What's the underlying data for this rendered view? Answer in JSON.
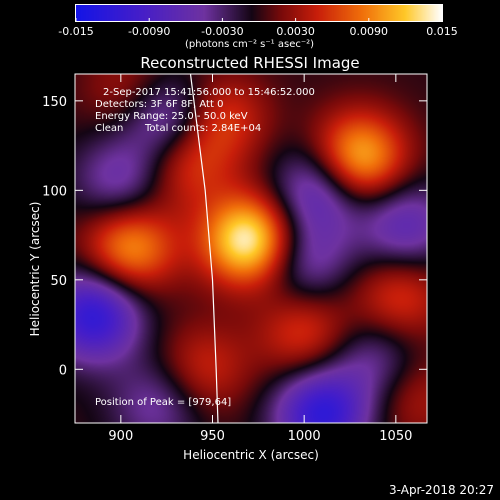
{
  "chart_data": {
    "type": "heatmap",
    "title": "Reconstructed RHESSI Image",
    "xlabel": "Heliocentric X (arcsec)",
    "ylabel": "Heliocentric Y (arcsec)",
    "xlim": [
      875,
      1067
    ],
    "ylim": [
      -30,
      165
    ],
    "xticks": [
      900,
      950,
      1000,
      1050
    ],
    "yticks": [
      0,
      50,
      100,
      150
    ],
    "colorbar": {
      "range": [
        -0.015,
        0.015
      ],
      "ticks": [
        "-0.015",
        "-0.0090",
        "-0.0030",
        "0.0030",
        "0.0090",
        "0.015"
      ],
      "unit_label": "(photons cm⁻² s⁻¹ asec⁻²)"
    },
    "annotations": [
      "2-Sep-2017 15:41:56.000 to 15:46:52.000",
      "Detectors: 3F 6F 8F, Att 0",
      "Energy Range: 25.0 - 50.0 keV",
      "Clean",
      "Total counts: 2.84E+04"
    ],
    "peak_label": "Position of Peak = [979,64]",
    "peak": [
      979,
      64
    ],
    "sources": [
      {
        "x": 970,
        "y": 72,
        "value": 0.015
      },
      {
        "x": 1030,
        "y": 118,
        "value": 0.012
      },
      {
        "x": 905,
        "y": 68,
        "value": 0.01
      },
      {
        "x": 1052,
        "y": 40,
        "value": 0.006
      },
      {
        "x": 955,
        "y": 140,
        "value": 0.006
      },
      {
        "x": 935,
        "y": 115,
        "value": 0.006
      },
      {
        "x": 1000,
        "y": 20,
        "value": 0.006
      },
      {
        "x": 945,
        "y": 0,
        "value": 0.005
      },
      {
        "x": 905,
        "y": 155,
        "value": 0.004
      },
      {
        "x": 1060,
        "y": -15,
        "value": 0.004
      },
      {
        "x": 925,
        "y": 140,
        "value": -0.008
      },
      {
        "x": 885,
        "y": 30,
        "value": -0.012
      },
      {
        "x": 1008,
        "y": 100,
        "value": -0.008
      },
      {
        "x": 1000,
        "y": 60,
        "value": -0.006
      },
      {
        "x": 900,
        "y": 105,
        "value": -0.006
      },
      {
        "x": 1055,
        "y": 80,
        "value": -0.007
      },
      {
        "x": 1040,
        "y": 5,
        "value": -0.005
      },
      {
        "x": 1010,
        "y": -25,
        "value": -0.012
      },
      {
        "x": 920,
        "y": -20,
        "value": -0.005
      }
    ],
    "limb": [
      [
        938,
        165
      ],
      [
        946,
        100
      ],
      [
        950,
        50
      ],
      [
        952,
        0
      ],
      [
        953,
        -30
      ]
    ]
  },
  "footer": {
    "date": "3-Apr-2018 20:27"
  }
}
